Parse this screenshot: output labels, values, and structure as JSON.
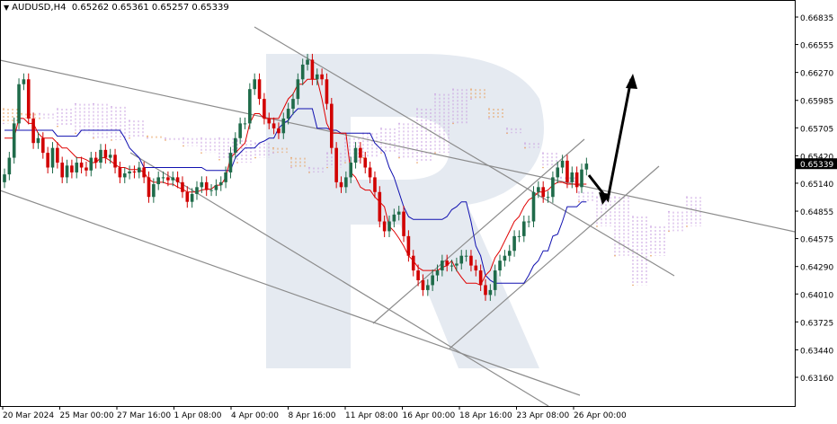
{
  "header": {
    "symbol_timeframe": "AUDUSD,H4",
    "ohlc": "0.65262 0.65361 0.65257 0.65339"
  },
  "chart_data": {
    "type": "candlestick",
    "title": "AUDUSD,H4",
    "ylim": [
      0.6316,
      0.66835
    ],
    "y_ticks": [
      "0.66835",
      "0.66555",
      "0.66270",
      "0.65985",
      "0.65705",
      "0.65420",
      "0.65140",
      "0.64855",
      "0.64575",
      "0.64290",
      "0.64010",
      "0.63725",
      "0.63440",
      "0.63160"
    ],
    "current_price": "0.65339",
    "x_ticks": [
      "20 Mar 2024",
      "25 Mar 00:00",
      "27 Mar 16:00",
      "1 Apr 08:00",
      "4 Apr 00:00",
      "8 Apr 16:00",
      "11 Apr 08:00",
      "16 Apr 00:00",
      "18 Apr 16:00",
      "23 Apr 08:00",
      "26 Apr 00:00"
    ],
    "colors": {
      "bull": "#1f6b4a",
      "bear": "#d10000",
      "tenkan": "#e00000",
      "kijun": "#1010b0",
      "senkou_a": "#e8a060",
      "senkou_b": "#c9a0e0",
      "trendline": "#8c8c8c",
      "arrow": "#000000",
      "watermark": "#dfe5ee"
    },
    "candles_close": [
      0.6523,
      0.654,
      0.6575,
      0.6615,
      0.662,
      0.658,
      0.6555,
      0.656,
      0.6545,
      0.653,
      0.655,
      0.6535,
      0.652,
      0.6532,
      0.6525,
      0.6535,
      0.653,
      0.6527,
      0.654,
      0.6535,
      0.6548,
      0.654,
      0.6543,
      0.653,
      0.652,
      0.6524,
      0.6526,
      0.6525,
      0.653,
      0.652,
      0.65,
      0.6513,
      0.652,
      0.652,
      0.6517,
      0.652,
      0.6515,
      0.6505,
      0.6495,
      0.6503,
      0.651,
      0.6515,
      0.6507,
      0.6507,
      0.6512,
      0.6515,
      0.6525,
      0.6545,
      0.656,
      0.6575,
      0.6575,
      0.661,
      0.662,
      0.66,
      0.658,
      0.6575,
      0.657,
      0.6565,
      0.658,
      0.659,
      0.66,
      0.662,
      0.6635,
      0.664,
      0.662,
      0.6625,
      0.662,
      0.6595,
      0.655,
      0.6515,
      0.651,
      0.652,
      0.6535,
      0.655,
      0.654,
      0.653,
      0.652,
      0.6505,
      0.6475,
      0.6465,
      0.6475,
      0.6482,
      0.6485,
      0.646,
      0.644,
      0.6425,
      0.6415,
      0.6405,
      0.641,
      0.642,
      0.6425,
      0.6435,
      0.643,
      0.643,
      0.6432,
      0.644,
      0.644,
      0.643,
      0.6425,
      0.641,
      0.64,
      0.6405,
      0.6425,
      0.6435,
      0.644,
      0.6445,
      0.646,
      0.646,
      0.6475,
      0.6475,
      0.6505,
      0.651,
      0.65,
      0.65,
      0.652,
      0.653,
      0.6537,
      0.6515,
      0.6525,
      0.651,
      0.6528,
      0.6534
    ],
    "tenkan_sen": [
      0.656,
      0.656,
      0.656,
      0.658,
      0.658,
      0.6575,
      0.6575,
      0.6565,
      0.656,
      0.656,
      0.656,
      0.6555,
      0.655,
      0.655,
      0.6545,
      0.654,
      0.654,
      0.6538,
      0.6535,
      0.6535,
      0.654,
      0.654,
      0.6537,
      0.6533,
      0.653,
      0.653,
      0.6528,
      0.6528,
      0.6528,
      0.6525,
      0.6518,
      0.6515,
      0.6515,
      0.6515,
      0.6513,
      0.6513,
      0.651,
      0.6508,
      0.6505,
      0.6505,
      0.6505,
      0.6507,
      0.6508,
      0.6508,
      0.6512,
      0.6512,
      0.652,
      0.654,
      0.6545,
      0.655,
      0.6555,
      0.6575,
      0.6585,
      0.6585,
      0.658,
      0.658,
      0.658,
      0.658,
      0.659,
      0.66,
      0.6605,
      0.6615,
      0.6615,
      0.662,
      0.662,
      0.662,
      0.66,
      0.6575,
      0.6565,
      0.6565,
      0.6565,
      0.6565,
      0.6525,
      0.652,
      0.651,
      0.6507,
      0.6507,
      0.65,
      0.6495,
      0.649,
      0.647,
      0.6465,
      0.6458,
      0.645,
      0.644,
      0.6435,
      0.6428,
      0.6425,
      0.6425,
      0.6425,
      0.6425,
      0.6428,
      0.643,
      0.6435,
      0.6425,
      0.6418,
      0.6412,
      0.6412,
      0.6412,
      0.641,
      0.642,
      0.6425,
      0.6438,
      0.6445,
      0.6455,
      0.6465,
      0.6475,
      0.648,
      0.649,
      0.6497,
      0.65,
      0.6505,
      0.6505,
      0.6507,
      0.6512,
      0.6515,
      0.6515,
      0.6513,
      0.6513,
      0.6513,
      0.6513,
      0.6513
    ],
    "kijun_sen": [
      0.6568,
      0.6568,
      0.6568,
      0.6568,
      0.6568,
      0.6568,
      0.6568,
      0.6568,
      0.6568,
      0.6568,
      0.6568,
      0.6562,
      0.6562,
      0.6562,
      0.6562,
      0.6562,
      0.6568,
      0.6568,
      0.6568,
      0.6568,
      0.6568,
      0.6568,
      0.6568,
      0.6568,
      0.6568,
      0.656,
      0.655,
      0.6545,
      0.654,
      0.653,
      0.653,
      0.653,
      0.653,
      0.653,
      0.653,
      0.653,
      0.653,
      0.653,
      0.653,
      0.653,
      0.653,
      0.653,
      0.6527,
      0.6527,
      0.6527,
      0.6527,
      0.6527,
      0.6527,
      0.654,
      0.6545,
      0.655,
      0.655,
      0.655,
      0.6555,
      0.6557,
      0.656,
      0.656,
      0.657,
      0.6575,
      0.6578,
      0.6585,
      0.659,
      0.659,
      0.659,
      0.659,
      0.657,
      0.657,
      0.657,
      0.6568,
      0.6568,
      0.6565,
      0.6565,
      0.6565,
      0.6565,
      0.6565,
      0.6565,
      0.6565,
      0.6555,
      0.655,
      0.6545,
      0.653,
      0.652,
      0.6505,
      0.649,
      0.648,
      0.6477,
      0.6477,
      0.6477,
      0.6477,
      0.6477,
      0.6477,
      0.6477,
      0.648,
      0.6487,
      0.649,
      0.6495,
      0.6495,
      0.6475,
      0.645,
      0.644,
      0.642,
      0.6415,
      0.6412,
      0.6412,
      0.6412,
      0.6412,
      0.6412,
      0.6412,
      0.6412,
      0.642,
      0.643,
      0.6435,
      0.6445,
      0.6445,
      0.646,
      0.6462,
      0.6475,
      0.649,
      0.649,
      0.649,
      0.6495,
      0.6495
    ],
    "ichimoku_cloud": [
      {
        "a": 0.659,
        "b": 0.6575
      },
      {
        "a": 0.6585,
        "b": 0.658
      },
      {
        "a": 0.658,
        "b": 0.6585
      },
      {
        "a": 0.6572,
        "b": 0.659
      },
      {
        "a": 0.6565,
        "b": 0.6595
      },
      {
        "a": 0.656,
        "b": 0.6595
      },
      {
        "a": 0.6558,
        "b": 0.6592
      },
      {
        "a": 0.656,
        "b": 0.6578
      },
      {
        "a": 0.6562,
        "b": 0.656
      },
      {
        "a": 0.6558,
        "b": 0.656
      },
      {
        "a": 0.6552,
        "b": 0.656
      },
      {
        "a": 0.6545,
        "b": 0.656
      },
      {
        "a": 0.6538,
        "b": 0.656
      },
      {
        "a": 0.6535,
        "b": 0.6558
      },
      {
        "a": 0.654,
        "b": 0.6555
      },
      {
        "a": 0.655,
        "b": 0.6545
      },
      {
        "a": 0.654,
        "b": 0.653
      },
      {
        "a": 0.6525,
        "b": 0.653
      },
      {
        "a": 0.653,
        "b": 0.6545
      },
      {
        "a": 0.6535,
        "b": 0.656
      },
      {
        "a": 0.654,
        "b": 0.6565
      },
      {
        "a": 0.6545,
        "b": 0.657
      },
      {
        "a": 0.654,
        "b": 0.6575
      },
      {
        "a": 0.6535,
        "b": 0.659
      },
      {
        "a": 0.6545,
        "b": 0.6605
      },
      {
        "a": 0.6575,
        "b": 0.661
      },
      {
        "a": 0.661,
        "b": 0.66
      },
      {
        "a": 0.659,
        "b": 0.658
      },
      {
        "a": 0.6565,
        "b": 0.657
      },
      {
        "a": 0.655,
        "b": 0.6555
      },
      {
        "a": 0.653,
        "b": 0.6545
      },
      {
        "a": 0.6515,
        "b": 0.652
      },
      {
        "a": 0.6495,
        "b": 0.6505
      },
      {
        "a": 0.647,
        "b": 0.65
      },
      {
        "a": 0.644,
        "b": 0.65
      },
      {
        "a": 0.641,
        "b": 0.648
      },
      {
        "a": 0.644,
        "b": 0.647
      },
      {
        "a": 0.6465,
        "b": 0.6485
      },
      {
        "a": 0.647,
        "b": 0.65
      }
    ]
  }
}
